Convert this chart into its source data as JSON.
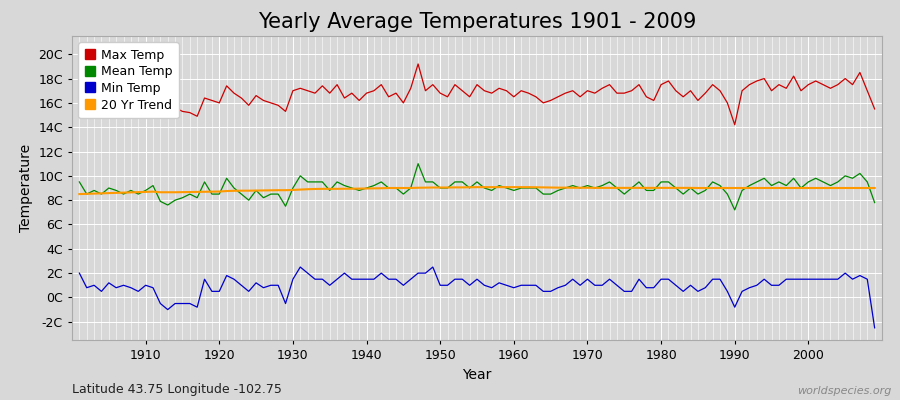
{
  "title": "Yearly Average Temperatures 1901 - 2009",
  "xlabel": "Year",
  "ylabel": "Temperature",
  "subtitle": "Latitude 43.75 Longitude -102.75",
  "watermark": "worldspecies.org",
  "years": [
    1901,
    1902,
    1903,
    1904,
    1905,
    1906,
    1907,
    1908,
    1909,
    1910,
    1911,
    1912,
    1913,
    1914,
    1915,
    1916,
    1917,
    1918,
    1919,
    1920,
    1921,
    1922,
    1923,
    1924,
    1925,
    1926,
    1927,
    1928,
    1929,
    1930,
    1931,
    1932,
    1933,
    1934,
    1935,
    1936,
    1937,
    1938,
    1939,
    1940,
    1941,
    1942,
    1943,
    1944,
    1945,
    1946,
    1947,
    1948,
    1949,
    1950,
    1951,
    1952,
    1953,
    1954,
    1955,
    1956,
    1957,
    1958,
    1959,
    1960,
    1961,
    1962,
    1963,
    1964,
    1965,
    1966,
    1967,
    1968,
    1969,
    1970,
    1971,
    1972,
    1973,
    1974,
    1975,
    1976,
    1977,
    1978,
    1979,
    1980,
    1981,
    1982,
    1983,
    1984,
    1985,
    1986,
    1987,
    1988,
    1989,
    1990,
    1991,
    1992,
    1993,
    1994,
    1995,
    1996,
    1997,
    1998,
    1999,
    2000,
    2001,
    2002,
    2003,
    2004,
    2005,
    2006,
    2007,
    2008,
    2009
  ],
  "max_temp": [
    17.3,
    16.5,
    16.8,
    17.5,
    16.9,
    17.8,
    17.2,
    18.0,
    16.2,
    17.4,
    18.2,
    16.0,
    15.1,
    15.6,
    15.3,
    15.2,
    14.9,
    16.4,
    16.2,
    16.0,
    17.4,
    16.8,
    16.4,
    15.8,
    16.6,
    16.2,
    16.0,
    15.8,
    15.3,
    17.0,
    17.2,
    17.0,
    16.8,
    17.4,
    16.8,
    17.5,
    16.4,
    16.8,
    16.2,
    16.8,
    17.0,
    17.5,
    16.5,
    16.8,
    16.0,
    17.2,
    19.2,
    17.0,
    17.5,
    16.8,
    16.5,
    17.5,
    17.0,
    16.5,
    17.5,
    17.0,
    16.8,
    17.2,
    17.0,
    16.5,
    17.0,
    16.8,
    16.5,
    16.0,
    16.2,
    16.5,
    16.8,
    17.0,
    16.5,
    17.0,
    16.8,
    17.2,
    17.5,
    16.8,
    16.8,
    17.0,
    17.5,
    16.5,
    16.2,
    17.5,
    17.8,
    17.0,
    16.5,
    17.0,
    16.2,
    16.8,
    17.5,
    17.0,
    16.0,
    14.2,
    17.0,
    17.5,
    17.8,
    18.0,
    17.0,
    17.5,
    17.2,
    18.2,
    17.0,
    17.5,
    17.8,
    17.5,
    17.2,
    17.5,
    18.0,
    17.5,
    18.5,
    17.0,
    15.5
  ],
  "mean_temp": [
    9.5,
    8.5,
    8.8,
    8.5,
    9.0,
    8.8,
    8.5,
    8.8,
    8.5,
    8.8,
    9.2,
    7.9,
    7.6,
    8.0,
    8.2,
    8.5,
    8.2,
    9.5,
    8.5,
    8.5,
    9.8,
    9.0,
    8.5,
    8.0,
    8.8,
    8.2,
    8.5,
    8.5,
    7.5,
    9.0,
    10.0,
    9.5,
    9.5,
    9.5,
    8.8,
    9.5,
    9.2,
    9.0,
    8.8,
    9.0,
    9.2,
    9.5,
    9.0,
    9.0,
    8.5,
    9.0,
    11.0,
    9.5,
    9.5,
    9.0,
    9.0,
    9.5,
    9.5,
    9.0,
    9.5,
    9.0,
    8.8,
    9.2,
    9.0,
    8.8,
    9.0,
    9.0,
    9.0,
    8.5,
    8.5,
    8.8,
    9.0,
    9.2,
    9.0,
    9.2,
    9.0,
    9.2,
    9.5,
    9.0,
    8.5,
    9.0,
    9.5,
    8.8,
    8.8,
    9.5,
    9.5,
    9.0,
    8.5,
    9.0,
    8.5,
    8.8,
    9.5,
    9.2,
    8.5,
    7.2,
    8.8,
    9.2,
    9.5,
    9.8,
    9.2,
    9.5,
    9.2,
    9.8,
    9.0,
    9.5,
    9.8,
    9.5,
    9.2,
    9.5,
    10.0,
    9.8,
    10.2,
    9.5,
    7.8
  ],
  "min_temp": [
    2.0,
    0.8,
    1.0,
    0.5,
    1.2,
    0.8,
    1.0,
    0.8,
    0.5,
    1.0,
    0.8,
    -0.5,
    -1.0,
    -0.5,
    -0.5,
    -0.5,
    -0.8,
    1.5,
    0.5,
    0.5,
    1.8,
    1.5,
    1.0,
    0.5,
    1.2,
    0.8,
    1.0,
    1.0,
    -0.5,
    1.5,
    2.5,
    2.0,
    1.5,
    1.5,
    1.0,
    1.5,
    2.0,
    1.5,
    1.5,
    1.5,
    1.5,
    2.0,
    1.5,
    1.5,
    1.0,
    1.5,
    2.0,
    2.0,
    2.5,
    1.0,
    1.0,
    1.5,
    1.5,
    1.0,
    1.5,
    1.0,
    0.8,
    1.2,
    1.0,
    0.8,
    1.0,
    1.0,
    1.0,
    0.5,
    0.5,
    0.8,
    1.0,
    1.5,
    1.0,
    1.5,
    1.0,
    1.0,
    1.5,
    1.0,
    0.5,
    0.5,
    1.5,
    0.8,
    0.8,
    1.5,
    1.5,
    1.0,
    0.5,
    1.0,
    0.5,
    0.8,
    1.5,
    1.5,
    0.5,
    -0.8,
    0.5,
    0.8,
    1.0,
    1.5,
    1.0,
    1.0,
    1.5,
    1.5,
    1.5,
    1.5,
    1.5,
    1.5,
    1.5,
    1.5,
    2.0,
    1.5,
    1.8,
    1.5,
    -2.5
  ],
  "trend_values": [
    8.5,
    8.52,
    8.54,
    8.56,
    8.58,
    8.6,
    8.62,
    8.64,
    8.66,
    8.68,
    8.7,
    8.65,
    8.65,
    8.65,
    8.66,
    8.67,
    8.68,
    8.69,
    8.7,
    8.71,
    8.75,
    8.77,
    8.78,
    8.78,
    8.79,
    8.8,
    8.81,
    8.82,
    8.82,
    8.84,
    8.87,
    8.9,
    8.92,
    8.93,
    8.93,
    8.93,
    8.94,
    8.94,
    8.95,
    8.96,
    8.97,
    8.98,
    9.0,
    9.0,
    9.0,
    9.0,
    9.02,
    9.03,
    9.04,
    9.04,
    9.04,
    9.05,
    9.05,
    9.06,
    9.07,
    9.07,
    9.07,
    9.07,
    9.07,
    9.07,
    9.07,
    9.07,
    9.06,
    9.05,
    9.04,
    9.03,
    9.03,
    9.02,
    9.02,
    9.02,
    9.01,
    9.01,
    9.01,
    9.01,
    9.01,
    9.01,
    9.01,
    9.01,
    9.01,
    9.01,
    9.01,
    9.01,
    9.01,
    9.01,
    9.0,
    9.0,
    9.0,
    9.0,
    9.0,
    9.0,
    9.0,
    9.0,
    9.0,
    9.0,
    9.0,
    9.0,
    9.0,
    9.0,
    9.0,
    9.0,
    9.0,
    9.0,
    9.0,
    9.0,
    9.0,
    9.0,
    9.0,
    9.0,
    9.0
  ],
  "max_color": "#cc0000",
  "mean_color": "#008800",
  "min_color": "#0000cc",
  "trend_color": "#ff9900",
  "bg_color": "#d8d8d8",
  "plot_bg_color": "#d8d8d8",
  "grid_color": "#ffffff",
  "ylim_min": -3.5,
  "ylim_max": 21.5,
  "ytick_labels": [
    "-2C",
    "0C",
    "2C",
    "4C",
    "6C",
    "8C",
    "10C",
    "12C",
    "14C",
    "16C",
    "18C",
    "20C"
  ],
  "ytick_values": [
    -2,
    0,
    2,
    4,
    6,
    8,
    10,
    12,
    14,
    16,
    18,
    20
  ],
  "xtick_values": [
    1910,
    1920,
    1930,
    1940,
    1950,
    1960,
    1970,
    1980,
    1990,
    2000
  ],
  "title_fontsize": 15,
  "axis_fontsize": 10,
  "tick_fontsize": 9,
  "legend_fontsize": 9,
  "watermark_fontsize": 8
}
